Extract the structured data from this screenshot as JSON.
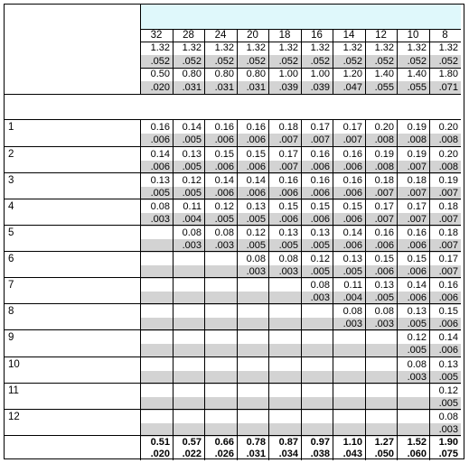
{
  "gauges": [
    "32",
    "28",
    "24",
    "20",
    "18",
    "16",
    "14",
    "12",
    "10",
    "8"
  ],
  "header_rows": [
    [
      "1.32",
      "1.32",
      "1.32",
      "1.32",
      "1.32",
      "1.32",
      "1.32",
      "1.32",
      "1.32",
      "1.32"
    ],
    [
      ".052",
      ".052",
      ".052",
      ".052",
      ".052",
      ".052",
      ".052",
      ".052",
      ".052",
      ".052"
    ],
    [
      "0.50",
      "0.80",
      "0.80",
      "0.80",
      "1.00",
      "1.00",
      "1.20",
      "1.40",
      "1.40",
      "1.80"
    ],
    [
      ".020",
      ".031",
      ".031",
      ".031",
      ".039",
      ".039",
      ".047",
      ".055",
      ".055",
      ".071"
    ]
  ],
  "rows": [
    {
      "label": "1",
      "top": [
        "0.16",
        "0.14",
        "0.16",
        "0.16",
        "0.18",
        "0.17",
        "0.17",
        "0.20",
        "0.19",
        "0.20"
      ],
      "bottom": [
        ".006",
        ".005",
        ".006",
        ".006",
        ".007",
        ".007",
        ".007",
        ".008",
        ".008",
        ".008"
      ]
    },
    {
      "label": "2",
      "top": [
        "0.14",
        "0.13",
        "0.15",
        "0.15",
        "0.17",
        "0.16",
        "0.16",
        "0.19",
        "0.19",
        "0.20"
      ],
      "bottom": [
        ".006",
        ".005",
        ".006",
        ".006",
        ".007",
        ".006",
        ".006",
        ".008",
        ".007",
        ".008"
      ]
    },
    {
      "label": "3",
      "top": [
        "0.13",
        "0.12",
        "0.14",
        "0.14",
        "0.16",
        "0.16",
        "0.16",
        "0.18",
        "0.18",
        "0.19"
      ],
      "bottom": [
        ".005",
        ".005",
        ".006",
        ".006",
        ".006",
        ".006",
        ".006",
        ".007",
        ".007",
        ".007"
      ]
    },
    {
      "label": "4",
      "top": [
        "0.08",
        "0.11",
        "0.12",
        "0.13",
        "0.15",
        "0.15",
        "0.15",
        "0.17",
        "0.17",
        "0.18"
      ],
      "bottom": [
        ".003",
        ".004",
        ".005",
        ".005",
        ".006",
        ".006",
        ".006",
        ".007",
        ".007",
        ".007"
      ]
    },
    {
      "label": "5",
      "top": [
        "",
        "0.08",
        "0.08",
        "0.12",
        "0.13",
        "0.13",
        "0.14",
        "0.16",
        "0.16",
        "0.18"
      ],
      "bottom": [
        "",
        ".003",
        ".003",
        ".005",
        ".005",
        ".005",
        ".006",
        ".006",
        ".006",
        ".007"
      ]
    },
    {
      "label": "6",
      "top": [
        "",
        "",
        "",
        "0.08",
        "0.08",
        "0.12",
        "0.13",
        "0.15",
        "0.15",
        "0.17"
      ],
      "bottom": [
        "",
        "",
        "",
        ".003",
        ".003",
        ".005",
        ".005",
        ".006",
        ".006",
        ".007"
      ]
    },
    {
      "label": "7",
      "top": [
        "",
        "",
        "",
        "",
        "",
        "0.08",
        "0.11",
        "0.13",
        "0.14",
        "0.16"
      ],
      "bottom": [
        "",
        "",
        "",
        "",
        "",
        ".003",
        ".004",
        ".005",
        ".006",
        ".006"
      ]
    },
    {
      "label": "8",
      "top": [
        "",
        "",
        "",
        "",
        "",
        "",
        "0.08",
        "0.08",
        "0.13",
        "0.15"
      ],
      "bottom": [
        "",
        "",
        "",
        "",
        "",
        "",
        ".003",
        ".003",
        ".005",
        ".006"
      ]
    },
    {
      "label": "9",
      "top": [
        "",
        "",
        "",
        "",
        "",
        "",
        "",
        "",
        "0.12",
        "0.14"
      ],
      "bottom": [
        "",
        "",
        "",
        "",
        "",
        "",
        "",
        "",
        ".005",
        ".006"
      ]
    },
    {
      "label": "10",
      "top": [
        "",
        "",
        "",
        "",
        "",
        "",
        "",
        "",
        "0.08",
        "0.13"
      ],
      "bottom": [
        "",
        "",
        "",
        "",
        "",
        "",
        "",
        "",
        ".003",
        ".005"
      ]
    },
    {
      "label": "11",
      "top": [
        "",
        "",
        "",
        "",
        "",
        "",
        "",
        "",
        "",
        "0.12"
      ],
      "bottom": [
        "",
        "",
        "",
        "",
        "",
        "",
        "",
        "",
        "",
        ".005"
      ]
    },
    {
      "label": "12",
      "top": [
        "",
        "",
        "",
        "",
        "",
        "",
        "",
        "",
        "",
        "0.08"
      ],
      "bottom": [
        "",
        "",
        "",
        "",
        "",
        "",
        "",
        "",
        "",
        ".003"
      ]
    }
  ],
  "totals": {
    "top": [
      "0.51",
      "0.57",
      "0.66",
      "0.78",
      "0.87",
      "0.97",
      "1.10",
      "1.27",
      "1.52",
      "1.90"
    ],
    "bottom": [
      ".020",
      ".022",
      ".026",
      ".031",
      ".034",
      ".038",
      ".043",
      ".050",
      ".060",
      ".075"
    ]
  },
  "colors": {
    "header_band": "#dff8fb",
    "shade": "#d3d3d3",
    "grid": "#000000"
  }
}
